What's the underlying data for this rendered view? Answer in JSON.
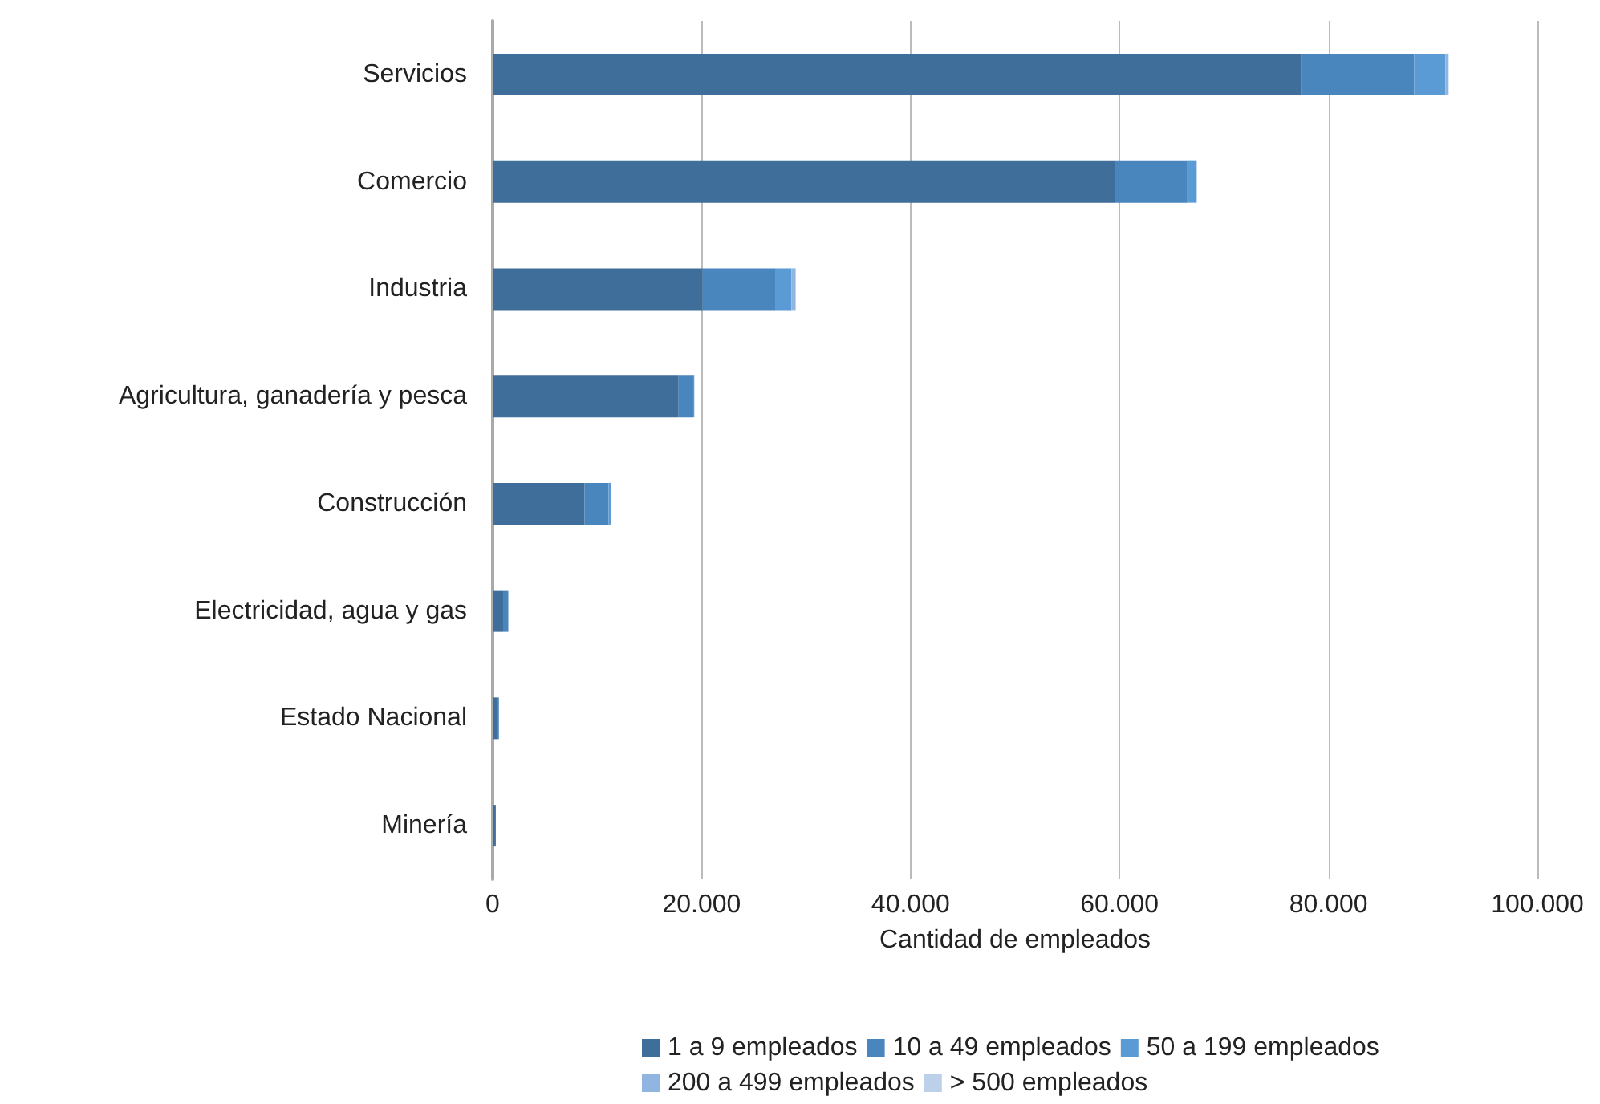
{
  "chart_data": {
    "type": "bar",
    "orientation": "horizontal",
    "stacked": true,
    "xlabel": "Cantidad de empleados",
    "categories": [
      "Servicios",
      "Comercio",
      "Industria",
      "Agricultura, ganadería y pesca",
      "Construcción",
      "Electricidad, agua y gas",
      "Estado Nacional",
      "Minería"
    ],
    "series": [
      {
        "name": "1 a 9 empleados",
        "color": "#3f6e9a",
        "values": [
          77400,
          59600,
          20100,
          17800,
          8800,
          1000,
          400,
          300
        ]
      },
      {
        "name": "10 a 49 empleados",
        "color": "#4a86be",
        "values": [
          10800,
          6900,
          7000,
          1400,
          2300,
          500,
          200,
          null
        ]
      },
      {
        "name": "50 a 199 empleados",
        "color": "#5b9bd5",
        "values": [
          3000,
          800,
          1500,
          100,
          200,
          null,
          null,
          null
        ]
      },
      {
        "name": "200 a 499 empleados",
        "color": "#8fb5e0",
        "values": [
          300,
          100,
          400,
          null,
          null,
          null,
          null,
          null
        ]
      },
      {
        "name": "> 500 empleados",
        "color": "#bdd0ea",
        "values": [
          null,
          null,
          null,
          null,
          null,
          null,
          null,
          null
        ]
      }
    ],
    "xlim": [
      0,
      100000
    ],
    "xticks": [
      0,
      {
        "value": 20000,
        "label": "20.000"
      },
      {
        "value": 40000,
        "label": "40.000"
      },
      {
        "value": 60000,
        "label": "60.000"
      },
      {
        "value": 80000,
        "label": "80.000"
      },
      {
        "value": 100000,
        "label": "100.000"
      }
    ],
    "grid": "x",
    "legend": "bottom"
  }
}
